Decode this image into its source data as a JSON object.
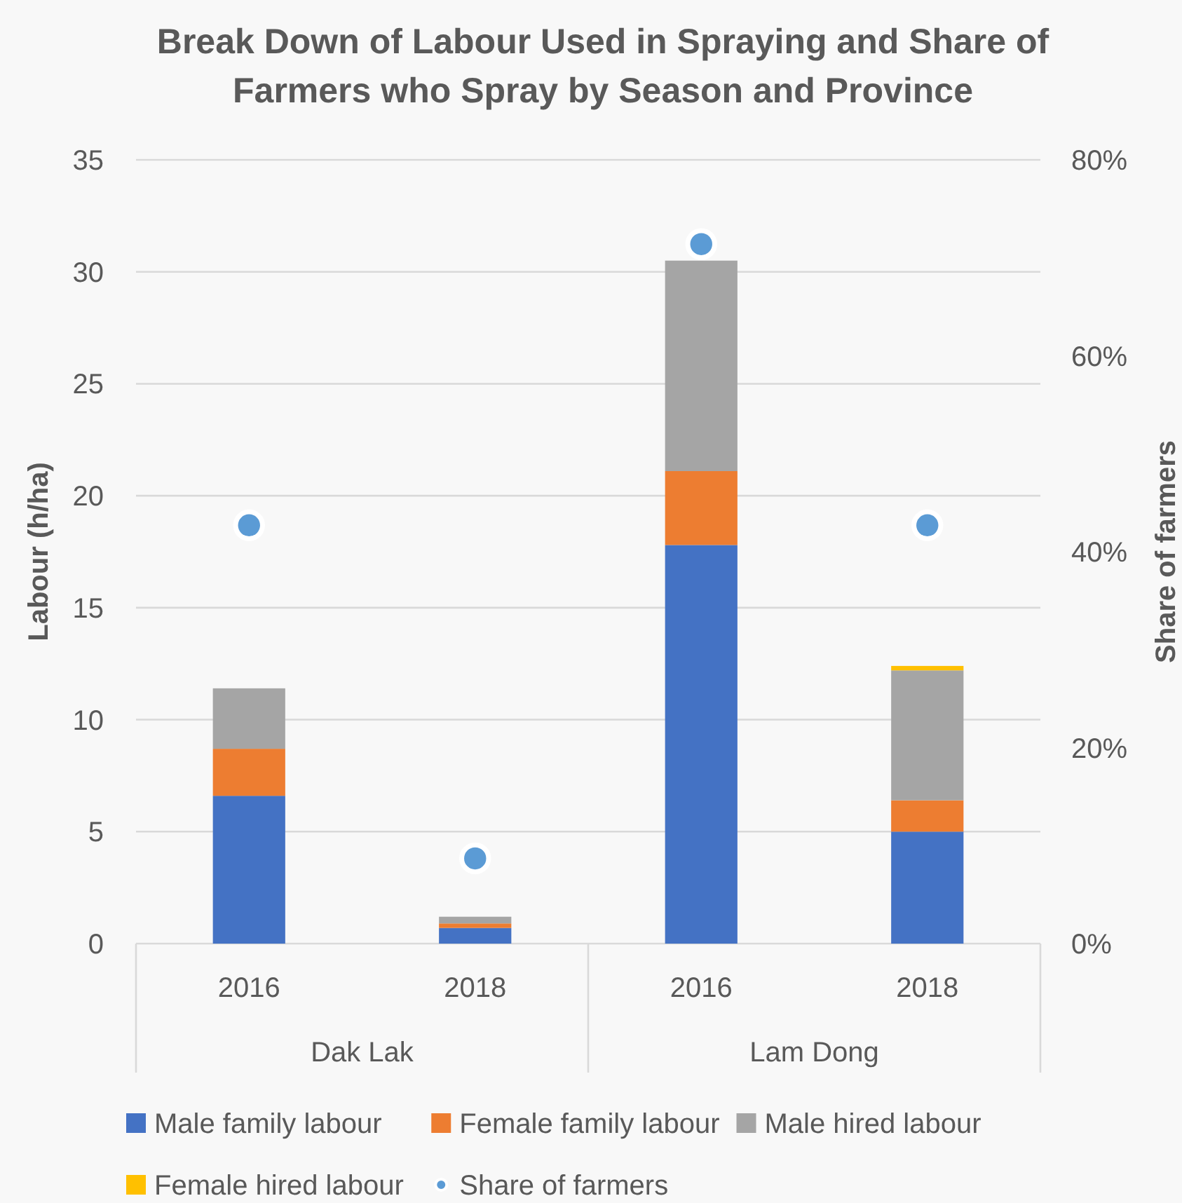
{
  "chart_data": {
    "type": "bar",
    "title": "Break Down of Labour Used in Spraying and Share of Farmers who Spray by Season and Province",
    "ylabel": "Labour (h/ha)",
    "y2label": "Share of farmers",
    "categories": [
      "2016",
      "2018",
      "2016",
      "2018"
    ],
    "annotations": [
      "Dak Lak",
      "Lam Dong"
    ],
    "stacked": true,
    "series": [
      {
        "name": "Male family labour",
        "color": "#4472c4",
        "values": [
          6.6,
          0.7,
          17.8,
          5.0
        ]
      },
      {
        "name": "Female family labour",
        "color": "#ed7d31",
        "values": [
          2.1,
          0.2,
          3.3,
          1.4
        ]
      },
      {
        "name": "Male hired labour",
        "color": "#a5a5a5",
        "values": [
          2.7,
          0.3,
          9.4,
          5.8
        ]
      },
      {
        "name": "Female hired labour",
        "color": "#ffc000",
        "values": [
          null,
          null,
          null,
          0.2
        ]
      },
      {
        "name": "Share of farmers",
        "type": "scatter",
        "axis": "y2",
        "color": "#5b9bd5",
        "values": [
          42.7,
          8.7,
          71.4,
          42.7
        ]
      }
    ],
    "marker": "circle",
    "ylim": [
      0,
      35
    ],
    "yticks": [
      0,
      5,
      10,
      15,
      20,
      25,
      30,
      35
    ],
    "y2lim": [
      0,
      80
    ],
    "y2ticks": [
      {
        "value": 0,
        "label": "0%"
      },
      {
        "value": 20,
        "label": "20%"
      },
      {
        "value": 40,
        "label": "40%"
      },
      {
        "value": 60,
        "label": "60%"
      },
      {
        "value": 80,
        "label": "80%"
      }
    ],
    "grid": "y",
    "legend": "bottom"
  }
}
